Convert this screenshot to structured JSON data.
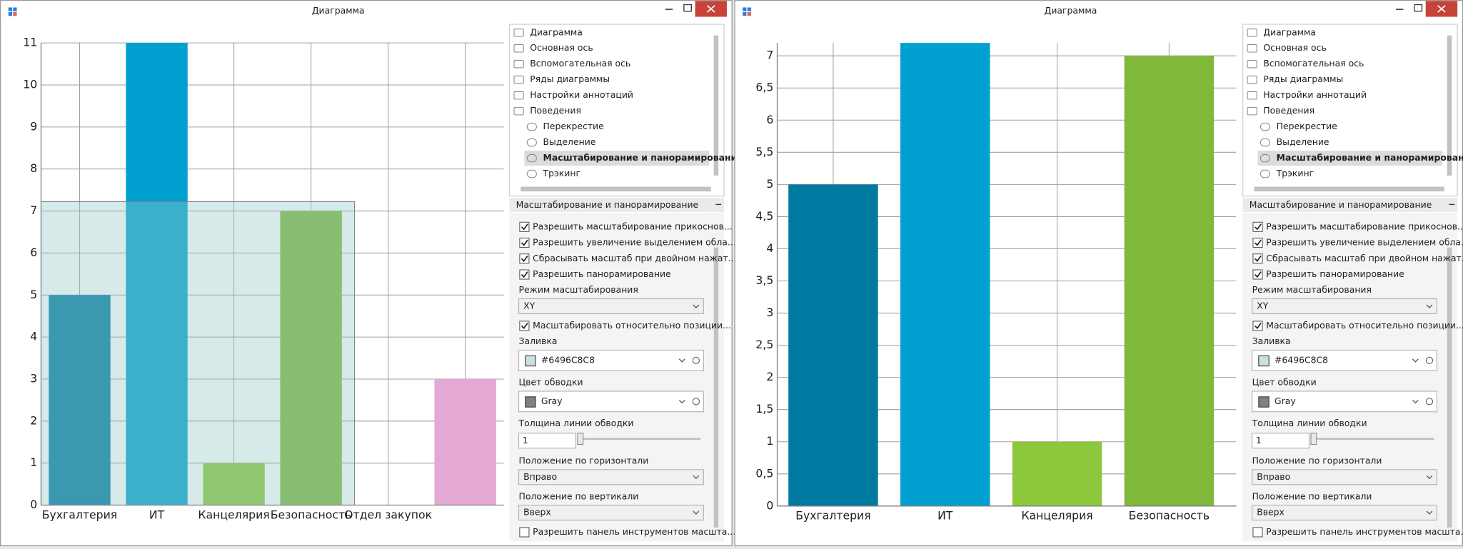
{
  "windows": [
    {
      "title": "Диаграмма",
      "chart": {
        "type": "bar",
        "categories": [
          "Бухгалтерия",
          "ИТ",
          "Канцелярия",
          "Безопасность",
          "Отдел закупок",
          null
        ],
        "values": [
          5,
          11,
          1,
          7,
          null,
          3
        ],
        "colors": [
          "#0079a0",
          "#00a0d0",
          "#8dc83c",
          "#80b83a",
          null,
          "#e4a8d4"
        ],
        "ylim": [
          0,
          11
        ],
        "yticks": [
          0,
          1,
          2,
          3,
          4,
          5,
          6,
          7,
          8,
          9,
          10,
          11
        ],
        "grid": true
      },
      "tree": [
        {
          "label": "Диаграмма",
          "level": 0,
          "selected": false
        },
        {
          "label": "Основная ось",
          "level": 0,
          "selected": false
        },
        {
          "label": "Вспомогательная ось",
          "level": 0,
          "selected": false
        },
        {
          "label": "Ряды диаграммы",
          "level": 0,
          "selected": false
        },
        {
          "label": "Настройки аннотаций",
          "level": 0,
          "selected": false
        },
        {
          "label": "Поведения",
          "level": 0,
          "selected": false
        },
        {
          "label": "Перекрестие",
          "level": 1,
          "selected": false
        },
        {
          "label": "Выделение",
          "level": 1,
          "selected": false
        },
        {
          "label": "Масштабирование и панорамирование",
          "level": 1,
          "selected": true
        },
        {
          "label": "Трэкинг",
          "level": 1,
          "selected": false
        }
      ],
      "panel_title": "Масштабирование и панорамирование",
      "properties": [
        {
          "kind": "checkbox",
          "label": "Разрешить масштабирование прикоснов...",
          "checked": true
        },
        {
          "kind": "checkbox",
          "label": "Разрешить увеличение выделением обла...",
          "checked": true
        },
        {
          "kind": "checkbox",
          "label": "Сбрасывать масштаб при двойном нажат...",
          "checked": true
        },
        {
          "kind": "checkbox",
          "label": "Разрешить панорамирование",
          "checked": true
        },
        {
          "kind": "combo",
          "label": "Режим масштабирования",
          "value": "XY"
        },
        {
          "kind": "checkbox",
          "label": "Масштабировать относительно позиции...",
          "checked": true
        },
        {
          "kind": "color",
          "label": "Заливка",
          "value": "#6496C8C8",
          "swatch": "#c8e0e0"
        },
        {
          "kind": "color",
          "label": "Цвет обводки",
          "value": "Gray",
          "swatch": "#808080"
        },
        {
          "kind": "slider",
          "label": "Толщина линии обводки",
          "value": 1
        },
        {
          "kind": "combo",
          "label": "Положение по горизонтали",
          "value": "Вправо"
        },
        {
          "kind": "combo",
          "label": "Положение по вертикали",
          "value": "Вверх"
        },
        {
          "kind": "checkbox",
          "label": "Разрешить панель инструментов масшта...",
          "checked": false
        }
      ]
    },
    {
      "title": "Диаграмма",
      "chart": {
        "type": "bar",
        "categories": [
          "Бухгалтерия",
          "ИТ",
          "Канцелярия",
          "Безопасность"
        ],
        "values": [
          5,
          7.2,
          1,
          7
        ],
        "colors": [
          "#0079a0",
          "#00a0d0",
          "#8dc83c",
          "#80b83a"
        ],
        "ylim": [
          0,
          7.2
        ],
        "yticks": [
          0,
          {
            "value": 0.5,
            "label": "0,5"
          },
          1,
          {
            "value": 1.5,
            "label": "1,5"
          },
          2,
          {
            "value": 2.5,
            "label": "2,5"
          },
          3,
          {
            "value": 3.5,
            "label": "3,5"
          },
          4,
          {
            "value": 4.5,
            "label": "4,5"
          },
          5,
          {
            "value": 5.5,
            "label": "5,5"
          },
          6,
          {
            "value": 6.5,
            "label": "6,5"
          },
          7
        ],
        "grid": true
      },
      "tree": [
        {
          "label": "Диаграмма",
          "level": 0,
          "selected": false
        },
        {
          "label": "Основная ось",
          "level": 0,
          "selected": false
        },
        {
          "label": "Вспомогательная ось",
          "level": 0,
          "selected": false
        },
        {
          "label": "Ряды диаграммы",
          "level": 0,
          "selected": false
        },
        {
          "label": "Настройки аннотаций",
          "level": 0,
          "selected": false
        },
        {
          "label": "Поведения",
          "level": 0,
          "selected": false
        },
        {
          "label": "Перекрестие",
          "level": 1,
          "selected": false
        },
        {
          "label": "Выделение",
          "level": 1,
          "selected": false
        },
        {
          "label": "Масштабирование и панорамирование",
          "level": 1,
          "selected": true
        },
        {
          "label": "Трэкинг",
          "level": 1,
          "selected": false
        }
      ],
      "panel_title": "Масштабирование и панорамирование",
      "properties": [
        {
          "kind": "checkbox",
          "label": "Разрешить масштабирование прикоснов...",
          "checked": true
        },
        {
          "kind": "checkbox",
          "label": "Разрешить увеличение выделением обла...",
          "checked": true
        },
        {
          "kind": "checkbox",
          "label": "Сбрасывать масштаб при двойном нажат...",
          "checked": true
        },
        {
          "kind": "checkbox",
          "label": "Разрешить панорамирование",
          "checked": true
        },
        {
          "kind": "combo",
          "label": "Режим масштабирования",
          "value": "XY"
        },
        {
          "kind": "checkbox",
          "label": "Масштабировать относительно позиции...",
          "checked": true
        },
        {
          "kind": "color",
          "label": "Заливка",
          "value": "#6496C8C8",
          "swatch": "#c8e0e0"
        },
        {
          "kind": "color",
          "label": "Цвет обводки",
          "value": "Gray",
          "swatch": "#808080"
        },
        {
          "kind": "slider",
          "label": "Толщина линии обводки",
          "value": 1
        },
        {
          "kind": "combo",
          "label": "Положение по горизонтали",
          "value": "Вправо"
        },
        {
          "kind": "combo",
          "label": "Положение по вертикали",
          "value": "Вверх"
        },
        {
          "kind": "checkbox",
          "label": "Разрешить панель инструментов масшта...",
          "checked": false
        }
      ]
    }
  ]
}
